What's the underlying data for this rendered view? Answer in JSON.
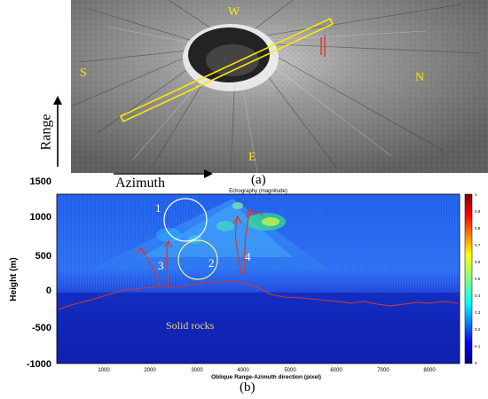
{
  "panel_a": {
    "label": "(a)",
    "directions": {
      "north": "W",
      "south": "E",
      "west": "S",
      "east": "N"
    },
    "range_label": "Range",
    "azimuth_label": "Azimuth"
  },
  "panel_b": {
    "label": "(b)",
    "title": "Echography (magnitude)",
    "xlabel": "Oblique Range-Azimuth direction (pixel)",
    "ylabel": "Height (m)",
    "xticks": [
      "1000",
      "2000",
      "3000",
      "4000",
      "5000",
      "6000",
      "7000",
      "8000"
    ],
    "yticks": [
      "1500",
      "1000",
      "500",
      "0",
      "-500",
      "-1000"
    ],
    "colorbar_ticks": [
      "1",
      "0.9",
      "0.8",
      "0.7",
      "0.6",
      "0.5",
      "0.4",
      "0.3",
      "0.2",
      "0.1",
      "0"
    ],
    "annotations": {
      "a1": "1",
      "a2": "2",
      "a3": "3",
      "a4": "4",
      "rocks": "Solid rocks"
    }
  },
  "colors": {
    "compass": "#ffe600",
    "profile_line": "#ffe600",
    "surface_line": "#d23a2a"
  }
}
